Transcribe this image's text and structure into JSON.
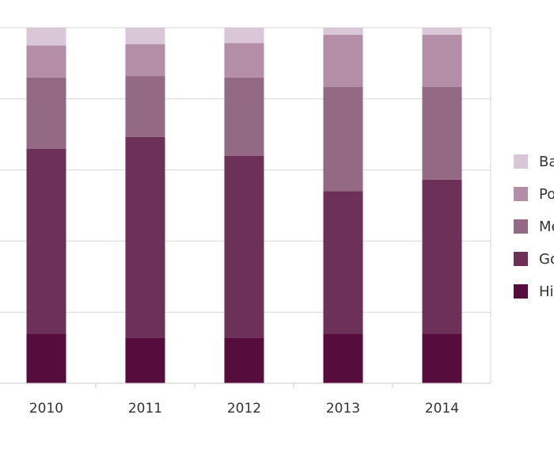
{
  "chart_data": {
    "type": "bar",
    "stacked": true,
    "normalized": true,
    "categories": [
      "2010",
      "2011",
      "2012",
      "2013",
      "2014"
    ],
    "series": [
      {
        "name": "Hi",
        "color": "#560d3e",
        "values": [
          0.14,
          0.127,
          0.127,
          0.14,
          0.14
        ]
      },
      {
        "name": "Go",
        "color": "#6d3059",
        "values": [
          0.52,
          0.566,
          0.513,
          0.4,
          0.433
        ]
      },
      {
        "name": "Me",
        "color": "#946984",
        "values": [
          0.2,
          0.171,
          0.22,
          0.293,
          0.26
        ]
      },
      {
        "name": "Po",
        "color": "#b48ea7",
        "values": [
          0.09,
          0.09,
          0.097,
          0.147,
          0.147
        ]
      },
      {
        "name": "Ba",
        "color": "#d9c6d6",
        "values": [
          0.05,
          0.046,
          0.043,
          0.02,
          0.02
        ]
      }
    ],
    "ylim": [
      0,
      1
    ],
    "grid": true,
    "legend_position": "right",
    "title": "",
    "xlabel": "",
    "ylabel": ""
  }
}
